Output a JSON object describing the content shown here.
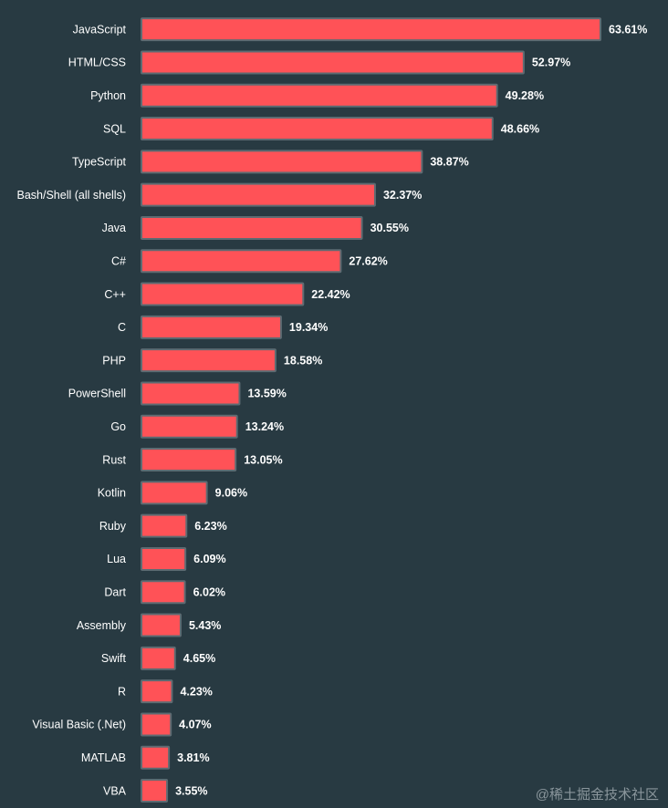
{
  "chart_data": {
    "type": "bar",
    "orientation": "horizontal",
    "color": "#ff5257",
    "categories": [
      "JavaScript",
      "HTML/CSS",
      "Python",
      "SQL",
      "TypeScript",
      "Bash/Shell (all shells)",
      "Java",
      "C#",
      "C++",
      "C",
      "PHP",
      "PowerShell",
      "Go",
      "Rust",
      "Kotlin",
      "Ruby",
      "Lua",
      "Dart",
      "Assembly",
      "Swift",
      "R",
      "Visual Basic (.Net)",
      "MATLAB",
      "VBA"
    ],
    "values": [
      63.61,
      52.97,
      49.28,
      48.66,
      38.87,
      32.37,
      30.55,
      27.62,
      22.42,
      19.34,
      18.58,
      13.59,
      13.24,
      13.05,
      9.06,
      6.23,
      6.09,
      6.02,
      5.43,
      4.65,
      4.23,
      4.07,
      3.81,
      3.55
    ],
    "value_labels": [
      "63.61%",
      "52.97%",
      "49.28%",
      "48.66%",
      "38.87%",
      "32.37%",
      "30.55%",
      "27.62%",
      "22.42%",
      "19.34%",
      "18.58%",
      "13.59%",
      "13.24%",
      "13.05%",
      "9.06%",
      "6.23%",
      "6.09%",
      "6.02%",
      "5.43%",
      "4.65%",
      "4.23%",
      "4.07%",
      "3.81%",
      "3.55%"
    ],
    "annotation": "@稀土掘金技术社区"
  }
}
